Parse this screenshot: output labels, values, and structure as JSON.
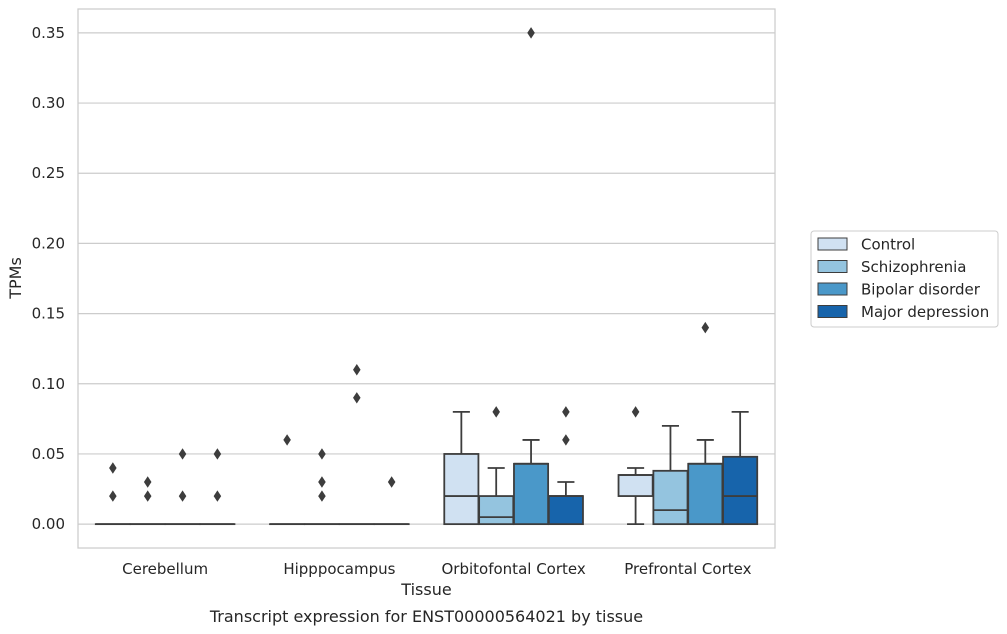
{
  "chart_data": {
    "type": "boxplot",
    "xlabel": "Tissue",
    "ylabel": "TPMs",
    "caption": "Transcript expression for ENST00000564021 by tissue",
    "ylim": [
      -0.017,
      0.367
    ],
    "yticks": [
      "0.00",
      "0.05",
      "0.10",
      "0.15",
      "0.20",
      "0.25",
      "0.30",
      "0.35"
    ],
    "ytick_values": [
      0.0,
      0.05,
      0.1,
      0.15,
      0.2,
      0.25,
      0.3,
      0.35
    ],
    "grid": "horizontal",
    "legend_position": "right",
    "categories": [
      "Cerebellum",
      "Hipppocampus",
      "Orbitofontal Cortex",
      "Prefrontal Cortex"
    ],
    "series": [
      {
        "name": "Control",
        "color": "#d0e1f2",
        "boxes": [
          {
            "q1": 0,
            "median": 0,
            "q3": 0,
            "whislo": 0,
            "whishi": 0,
            "fliers": [
              0.02,
              0.04
            ]
          },
          {
            "q1": 0,
            "median": 0,
            "q3": 0,
            "whislo": 0,
            "whishi": 0,
            "fliers": [
              0.06
            ]
          },
          {
            "q1": 0,
            "median": 0.02,
            "q3": 0.05,
            "whislo": 0,
            "whishi": 0.08,
            "fliers": []
          },
          {
            "q1": 0.02,
            "median": 0.035,
            "q3": 0.035,
            "whislo": 0,
            "whishi": 0.04,
            "fliers": [
              0.08
            ]
          }
        ]
      },
      {
        "name": "Schizophrenia",
        "color": "#94c4df",
        "boxes": [
          {
            "q1": 0,
            "median": 0,
            "q3": 0,
            "whislo": 0,
            "whishi": 0,
            "fliers": [
              0.02,
              0.03
            ]
          },
          {
            "q1": 0,
            "median": 0,
            "q3": 0,
            "whislo": 0,
            "whishi": 0,
            "fliers": [
              0.02,
              0.03,
              0.05
            ]
          },
          {
            "q1": 0,
            "median": 0.005,
            "q3": 0.02,
            "whislo": 0,
            "whishi": 0.04,
            "fliers": [
              0.08
            ]
          },
          {
            "q1": 0,
            "median": 0.01,
            "q3": 0.038,
            "whislo": 0,
            "whishi": 0.07,
            "fliers": []
          }
        ]
      },
      {
        "name": "Bipolar disorder",
        "color": "#4a98c9",
        "boxes": [
          {
            "q1": 0,
            "median": 0,
            "q3": 0,
            "whislo": 0,
            "whishi": 0,
            "fliers": [
              0.02,
              0.05
            ]
          },
          {
            "q1": 0,
            "median": 0,
            "q3": 0,
            "whislo": 0,
            "whishi": 0,
            "fliers": [
              0.09,
              0.11
            ]
          },
          {
            "q1": 0,
            "median": 0.043,
            "q3": 0.043,
            "whislo": 0,
            "whishi": 0.06,
            "fliers": [
              0.35
            ]
          },
          {
            "q1": 0,
            "median": 0.043,
            "q3": 0.043,
            "whislo": 0,
            "whishi": 0.06,
            "fliers": [
              0.14
            ]
          }
        ]
      },
      {
        "name": "Major depression",
        "color": "#1764ab",
        "boxes": [
          {
            "q1": 0,
            "median": 0,
            "q3": 0,
            "whislo": 0,
            "whishi": 0,
            "fliers": [
              0.02,
              0.05
            ]
          },
          {
            "q1": 0,
            "median": 0,
            "q3": 0,
            "whislo": 0,
            "whishi": 0,
            "fliers": [
              0.03
            ]
          },
          {
            "q1": 0,
            "median": 0.02,
            "q3": 0.02,
            "whislo": 0,
            "whishi": 0.03,
            "fliers": [
              0.06,
              0.08
            ]
          },
          {
            "q1": 0,
            "median": 0.02,
            "q3": 0.048,
            "whislo": 0,
            "whishi": 0.08,
            "fliers": []
          }
        ]
      }
    ],
    "colors": {
      "grid": "#cccccc",
      "frame": "#cccccc",
      "line": "#3d3d3d",
      "text": "#262626"
    }
  }
}
